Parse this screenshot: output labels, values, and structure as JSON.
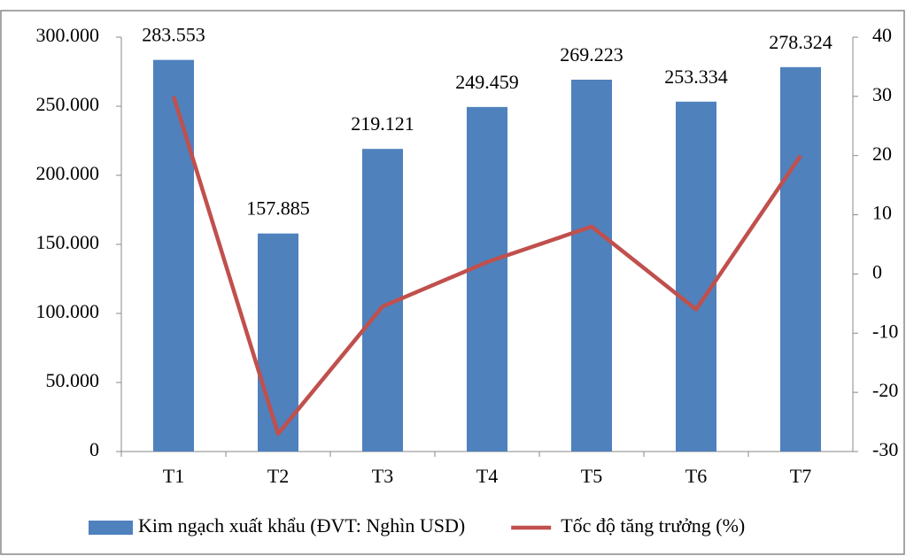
{
  "chart_data": {
    "type": "bar",
    "categories": [
      "T1",
      "T2",
      "T3",
      "T4",
      "T5",
      "T6",
      "T7"
    ],
    "series": [
      {
        "name": "Kim ngạch xuất khẩu (ĐVT: Nghìn USD)",
        "type": "bar",
        "color": "#4f81bd",
        "values": [
          283553,
          157885,
          219121,
          249459,
          269223,
          253334,
          278324
        ],
        "value_labels": [
          "283.553",
          "157.885",
          "219.121",
          "249.459",
          "269.223",
          "253.334",
          "278.324"
        ]
      },
      {
        "name": "Tốc độ tăng trưởng (%)",
        "type": "line",
        "axis": "y2",
        "color": "#c0504d",
        "values": [
          30,
          -27,
          -5.5,
          2,
          8,
          -6,
          20
        ]
      }
    ],
    "ylim": [
      0,
      300000
    ],
    "yticks": [
      0,
      {
        "value": 50000,
        "label": "50.000"
      },
      {
        "value": 100000,
        "label": "100.000"
      },
      {
        "value": 150000,
        "label": "150.000"
      },
      {
        "value": 200000,
        "label": "200.000"
      },
      {
        "value": 250000,
        "label": "250.000"
      },
      {
        "value": 300000,
        "label": "300.000"
      }
    ],
    "y2lim": [
      -30,
      40
    ],
    "y2ticks": [
      -30,
      -20,
      -10,
      0,
      10,
      20,
      30,
      40
    ],
    "legend": "bottom",
    "grid": false
  }
}
